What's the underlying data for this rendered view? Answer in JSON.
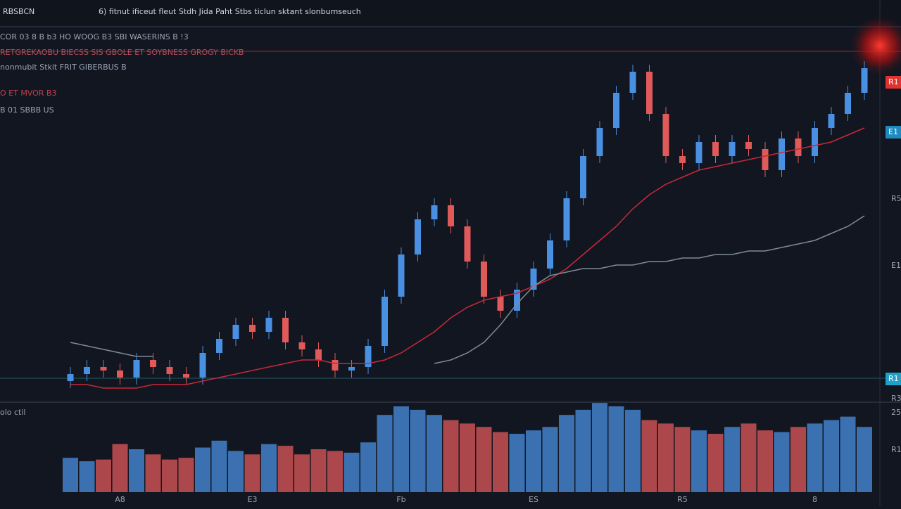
{
  "toolbar": {
    "symbol": "RBSBCN",
    "menu": "6) fitnut ificeut fleut Stdh Jida Paht Stbs ticlun sktant slonbumseuch"
  },
  "legend": {
    "lines": [
      "COR 03   8   B   b3   HO  WOOG  B3   SBI  WASERINS   B   !3",
      "RETGREKAOBU BIECSS SIS  GBOLE ET  SOYBNESS   GROGY BICKB",
      "nonmubit Stkit FRIT  GIBERBUS B",
      "O ET  MVOR B3",
      "B 01  SBBB US"
    ]
  },
  "price_tags": {
    "red": "R1",
    "blue_top": "E1",
    "blue_bottom": "R1",
    "axis": [
      "R5",
      "E1",
      "R3",
      "25",
      "R1"
    ],
    "volume_label": "olo ctil"
  },
  "chart_data": {
    "type": "candlestick",
    "categories": [
      null,
      null,
      null,
      "A8",
      null,
      null,
      null,
      null,
      null,
      null,
      null,
      "E3",
      null,
      null,
      null,
      null,
      null,
      null,
      null,
      null,
      "Fb",
      null,
      null,
      null,
      null,
      null,
      null,
      null,
      "ES",
      null,
      null,
      null,
      null,
      null,
      null,
      null,
      null,
      "R5",
      null,
      null,
      null,
      null,
      null,
      null,
      null,
      "8",
      null,
      null,
      null
    ],
    "open": [
      6,
      8,
      10,
      9,
      7,
      12,
      10,
      8,
      7,
      14,
      18,
      22,
      20,
      24,
      17,
      15,
      12,
      9,
      10,
      16,
      30,
      42,
      52,
      56,
      50,
      40,
      30,
      26,
      32,
      38,
      46,
      58,
      70,
      78,
      88,
      94,
      82,
      70,
      68,
      74,
      70,
      74,
      72,
      66,
      75,
      70,
      78,
      82,
      88
    ],
    "high": [
      10,
      12,
      12,
      11,
      14,
      14,
      12,
      10,
      16,
      20,
      24,
      24,
      26,
      26,
      19,
      17,
      14,
      12,
      18,
      32,
      44,
      54,
      58,
      58,
      52,
      42,
      32,
      34,
      40,
      48,
      60,
      72,
      80,
      90,
      96,
      96,
      84,
      72,
      76,
      76,
      76,
      76,
      74,
      77,
      77,
      80,
      84,
      90,
      97
    ],
    "low": [
      4,
      6,
      7,
      5,
      5,
      8,
      6,
      5,
      5,
      12,
      16,
      18,
      18,
      15,
      13,
      10,
      7,
      7,
      8,
      14,
      28,
      40,
      50,
      48,
      38,
      28,
      24,
      24,
      30,
      36,
      44,
      56,
      68,
      76,
      86,
      80,
      68,
      66,
      66,
      68,
      68,
      70,
      64,
      64,
      68,
      68,
      76,
      80,
      86
    ],
    "close": [
      8,
      10,
      9,
      7,
      12,
      10,
      8,
      7,
      14,
      18,
      22,
      20,
      24,
      17,
      15,
      12,
      9,
      10,
      16,
      30,
      42,
      52,
      56,
      50,
      40,
      30,
      26,
      32,
      38,
      46,
      58,
      70,
      78,
      88,
      94,
      82,
      70,
      68,
      74,
      70,
      74,
      72,
      66,
      75,
      70,
      78,
      82,
      88,
      95
    ],
    "volume": [
      20,
      18,
      19,
      28,
      25,
      22,
      19,
      20,
      26,
      30,
      24,
      22,
      28,
      27,
      22,
      25,
      24,
      23,
      29,
      45,
      50,
      48,
      45,
      42,
      40,
      38,
      35,
      34,
      36,
      38,
      45,
      48,
      52,
      50,
      48,
      42,
      40,
      38,
      36,
      34,
      38,
      40,
      36,
      35,
      38,
      40,
      42,
      44,
      38
    ],
    "ma_fast": [
      5,
      5,
      4,
      4,
      4,
      5,
      5,
      5,
      6,
      7,
      8,
      9,
      10,
      11,
      12,
      12,
      11,
      11,
      11,
      12,
      14,
      17,
      20,
      24,
      27,
      29,
      30,
      31,
      33,
      35,
      38,
      42,
      46,
      50,
      55,
      59,
      62,
      64,
      66,
      67,
      68,
      69,
      70,
      71,
      72,
      73,
      74,
      76,
      78
    ],
    "ma_slow": [
      17,
      16,
      15,
      14,
      13,
      13,
      null,
      null,
      null,
      null,
      null,
      null,
      null,
      null,
      null,
      null,
      null,
      null,
      null,
      null,
      null,
      null,
      11,
      12,
      14,
      17,
      22,
      28,
      33,
      36,
      37,
      38,
      38,
      39,
      39,
      40,
      40,
      41,
      41,
      42,
      42,
      43,
      43,
      44,
      45,
      46,
      48,
      50,
      53
    ],
    "up_color": "#4a90e2",
    "down_color": "#e05a5a",
    "ma_fast_color": "#c8283a",
    "ma_slow_color": "#7f8c93",
    "ylim": [
      0,
      100
    ],
    "volume_ylim": [
      0,
      50
    ]
  }
}
